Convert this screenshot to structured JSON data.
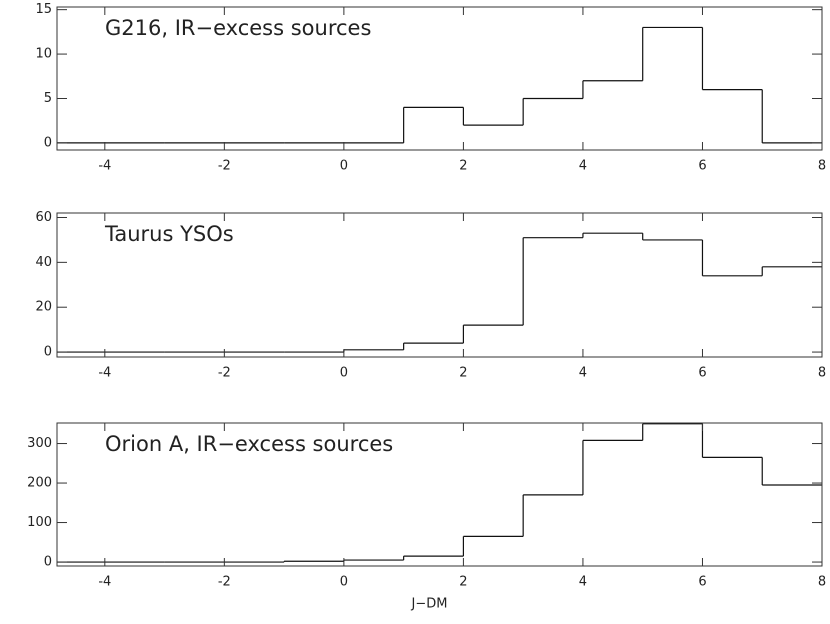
{
  "chart_data": [
    {
      "type": "histogram",
      "annotation": "G216, IR−excess sources",
      "bins": [
        -5,
        -4,
        -3,
        -2,
        -1,
        0,
        1,
        2,
        3,
        4,
        5,
        6,
        7,
        8
      ],
      "values": [
        0,
        0,
        0,
        0,
        0,
        0,
        4,
        2,
        5,
        7,
        13,
        6,
        0
      ],
      "xlim": [
        -4.8,
        8
      ],
      "xticks": [
        -4,
        -2,
        0,
        2,
        4,
        6,
        8
      ],
      "ylim": [
        -0.8,
        15.3
      ],
      "yticks": [
        0,
        5,
        10,
        15
      ],
      "color": "#111111"
    },
    {
      "type": "histogram",
      "annotation": "Taurus YSOs",
      "bins": [
        -5,
        -4,
        -3,
        -2,
        -1,
        0,
        1,
        2,
        3,
        4,
        5,
        6,
        7,
        8
      ],
      "values": [
        0,
        0,
        0,
        0,
        0,
        1,
        4,
        12,
        51,
        53,
        50,
        34,
        38
      ],
      "xlim": [
        -4.8,
        8
      ],
      "xticks": [
        -4,
        -2,
        0,
        2,
        4,
        6,
        8
      ],
      "ylim": [
        -2.2,
        62
      ],
      "yticks": [
        0,
        20,
        40,
        60
      ],
      "color": "#111111"
    },
    {
      "type": "histogram",
      "annotation": "Orion A, IR−excess sources",
      "bins": [
        -5,
        -4,
        -3,
        -2,
        -1,
        0,
        1,
        2,
        3,
        4,
        5,
        6,
        7,
        8
      ],
      "values": [
        0,
        0,
        0,
        0,
        2,
        5,
        15,
        65,
        170,
        308,
        350,
        265,
        195
      ],
      "xlim": [
        -4.8,
        8
      ],
      "xticks": [
        -4,
        -2,
        0,
        2,
        4,
        6,
        8
      ],
      "ylim": [
        -10,
        352
      ],
      "yticks": [
        0,
        100,
        200,
        300
      ],
      "color": "#111111",
      "xlabel": "J−DM"
    }
  ]
}
